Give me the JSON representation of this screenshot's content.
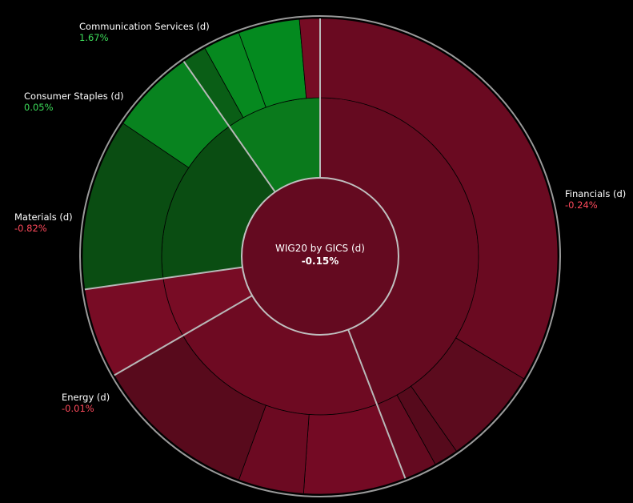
{
  "chart_data": {
    "type": "sunburst",
    "title": "WIG20 by GICS (d)",
    "total_change": "-0.15%",
    "sectors": [
      {
        "key": "financials",
        "label": "Financials (d)",
        "change": "-0.24%",
        "sign": "neg",
        "start_deg": 0,
        "end_deg": 159,
        "color": "#650a20",
        "children": [
          {
            "start_deg": 0,
            "end_deg": 121,
            "color": "#6a0a21"
          },
          {
            "start_deg": 121,
            "end_deg": 145,
            "color": "#5c0b1e"
          },
          {
            "start_deg": 145,
            "end_deg": 151,
            "color": "#560a1c"
          },
          {
            "start_deg": 151,
            "end_deg": 159,
            "color": "#640a20"
          }
        ]
      },
      {
        "key": "energy",
        "label": "Energy (d)",
        "change": "-0.01%",
        "sign": "neg",
        "start_deg": 159,
        "end_deg": 240,
        "color": "#6e0a22",
        "children": [
          {
            "start_deg": 159,
            "end_deg": 184,
            "color": "#740a24"
          },
          {
            "start_deg": 184,
            "end_deg": 200,
            "color": "#6c0a22"
          },
          {
            "start_deg": 200,
            "end_deg": 240,
            "color": "#580a1c"
          }
        ]
      },
      {
        "key": "materials",
        "label": "Materials (d)",
        "change": "-0.82%",
        "sign": "neg",
        "start_deg": 240,
        "end_deg": 262,
        "color": "#780c25",
        "children": [
          {
            "start_deg": 240,
            "end_deg": 262,
            "color": "#780c25"
          }
        ]
      },
      {
        "key": "consumer_staples",
        "label": "Consumer Staples (d)",
        "change": "0.05%",
        "sign": "pos",
        "start_deg": 262,
        "end_deg": 325,
        "color": "#0a4d12",
        "children": [
          {
            "start_deg": 262,
            "end_deg": 304,
            "color": "#0a4d12"
          },
          {
            "start_deg": 304,
            "end_deg": 325,
            "color": "#08831f"
          }
        ]
      },
      {
        "key": "communication_services",
        "label": "Communication Services (d)",
        "change": "1.67%",
        "sign": "pos",
        "start_deg": 325,
        "end_deg": 360,
        "color": "#0a7a1c",
        "children": [
          {
            "start_deg": 325,
            "end_deg": 331,
            "color": "#0a5e16"
          },
          {
            "start_deg": 331,
            "end_deg": 340,
            "color": "#06891f"
          },
          {
            "start_deg": 340,
            "end_deg": 355,
            "color": "#048a1f"
          },
          {
            "start_deg": 355,
            "end_deg": 360,
            "color": "#760c24"
          }
        ]
      }
    ]
  }
}
